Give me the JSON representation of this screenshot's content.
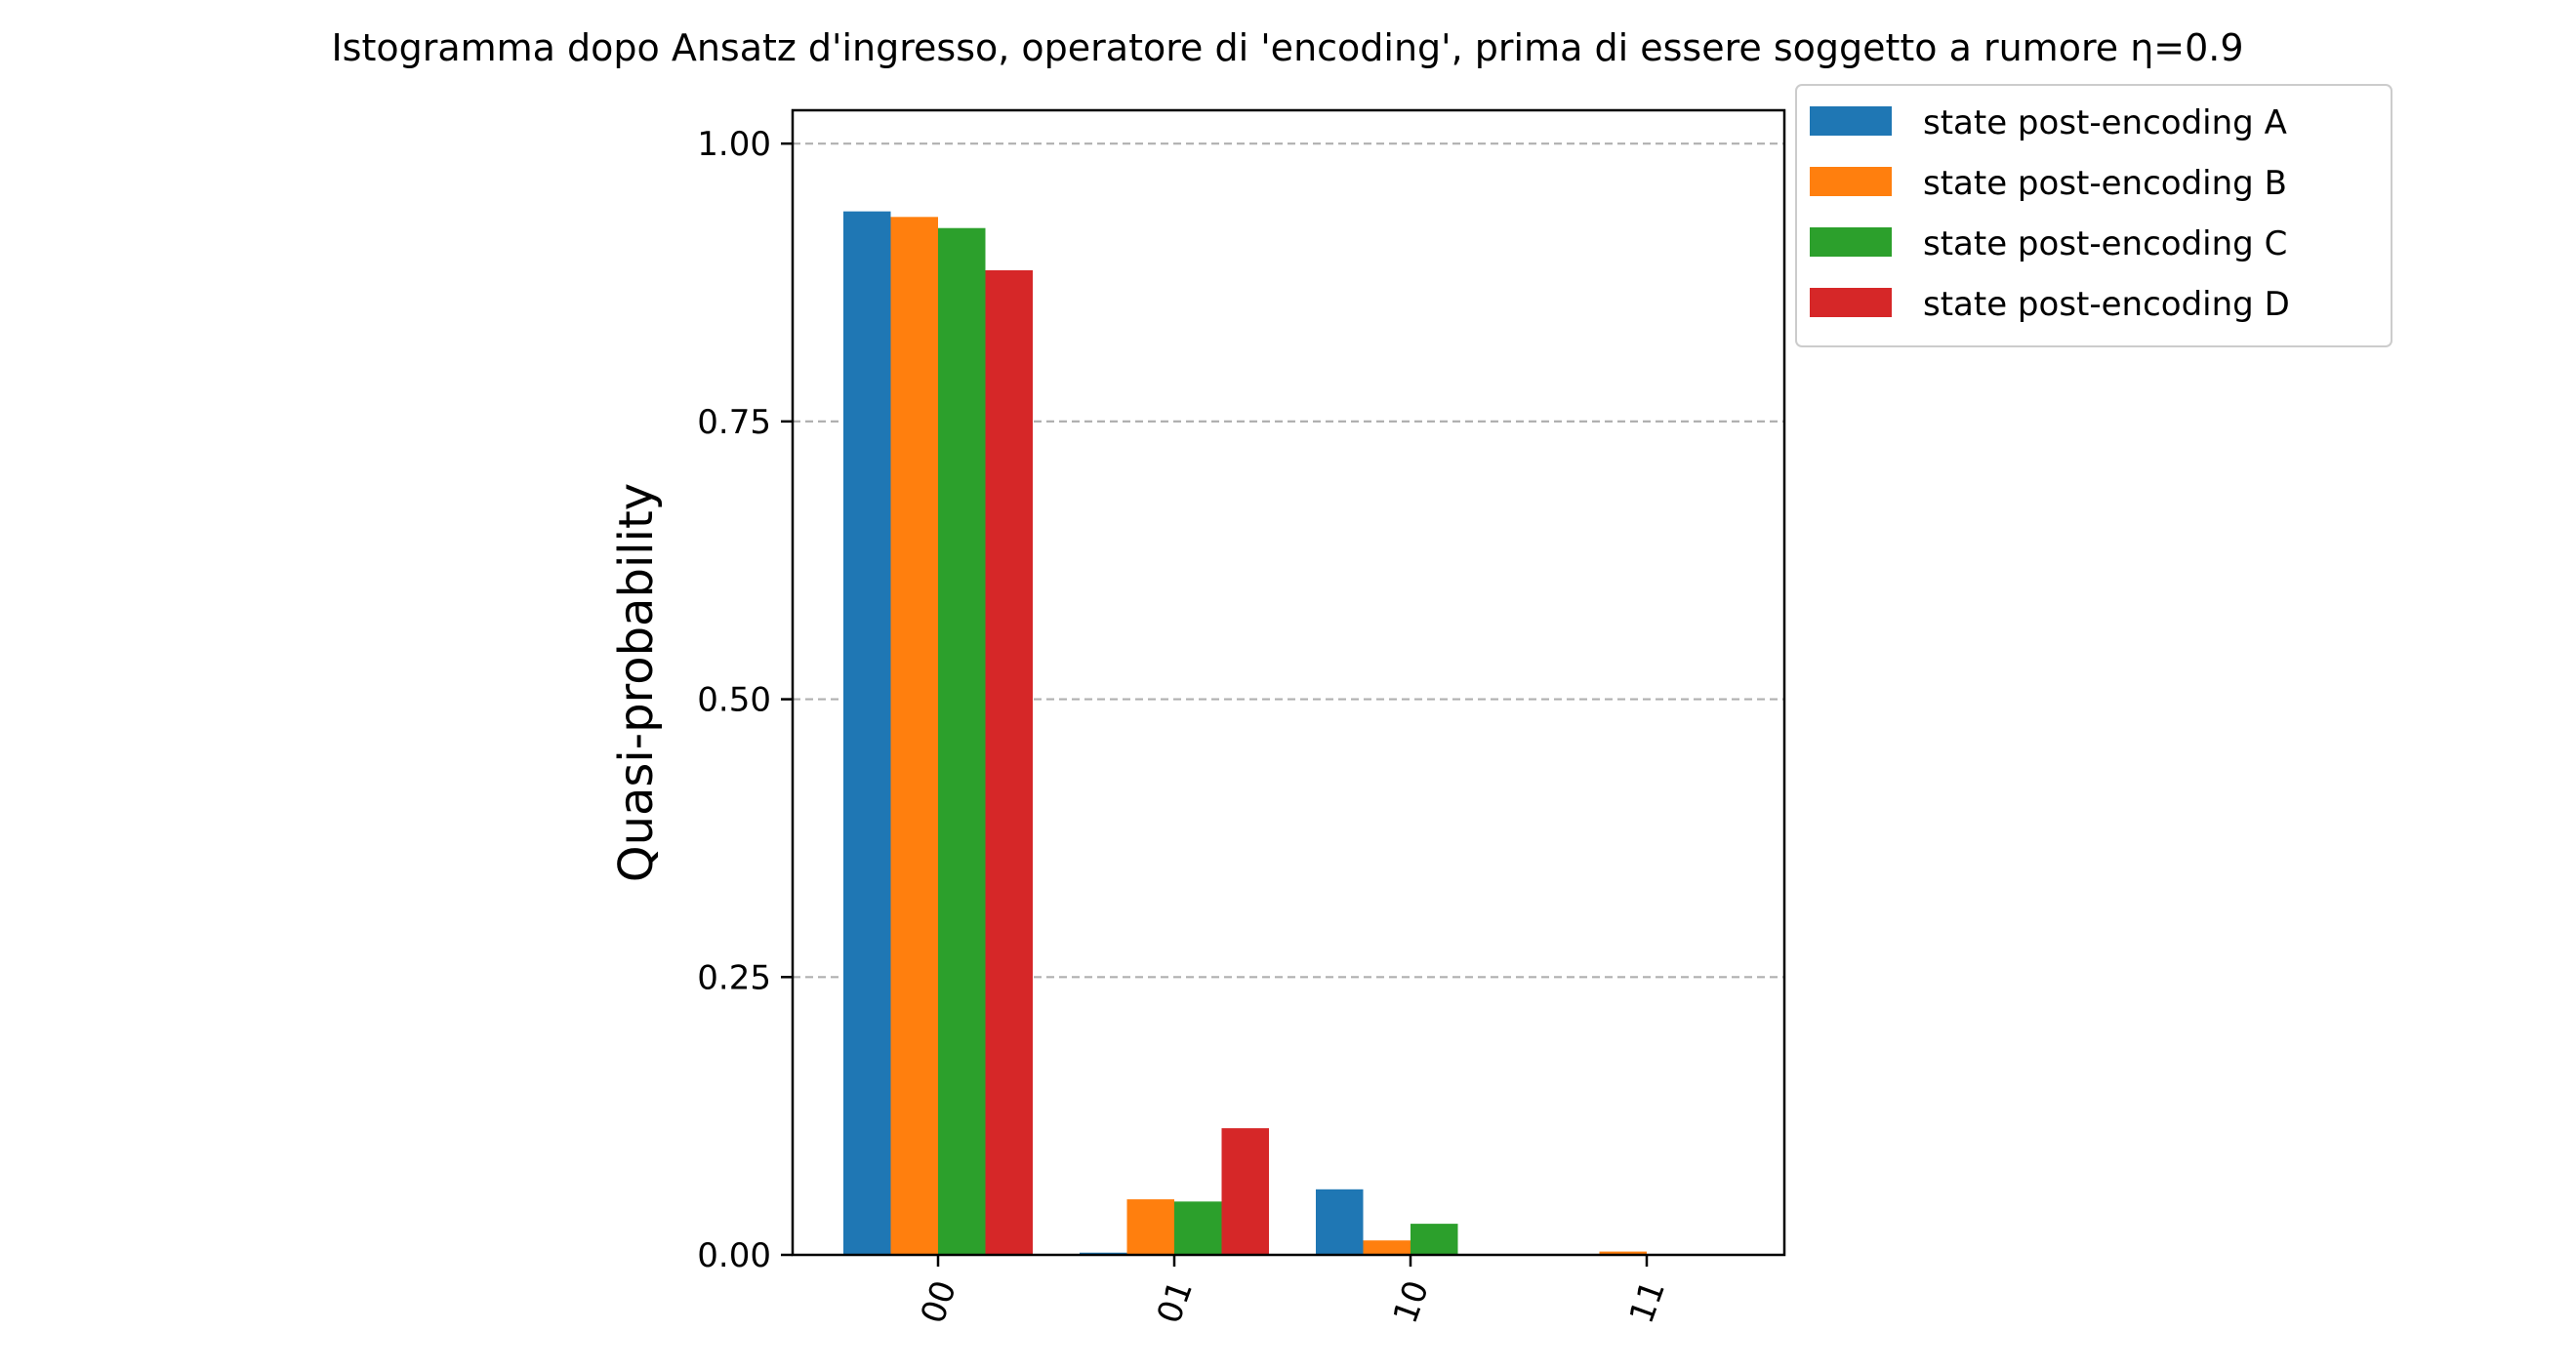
{
  "chart_data": {
    "type": "bar",
    "title": "Istogramma dopo Ansatz d'ingresso, operatore di 'encoding', prima di essere soggetto a rumore η=0.9",
    "xlabel": "",
    "ylabel": "Quasi-probability",
    "ylim": [
      0,
      1.03
    ],
    "yticks": [
      0.0,
      0.25,
      0.5,
      0.75,
      1.0
    ],
    "ytick_labels": [
      "0.00",
      "0.25",
      "0.50",
      "0.75",
      "1.00"
    ],
    "grid": "y-dashed",
    "legend_position": "outside-top-right",
    "categories": [
      "00",
      "01",
      "10",
      "11"
    ],
    "series": [
      {
        "name": "state post-encoding A",
        "color": "#1f77b4",
        "values": [
          0.939,
          0.002,
          0.059,
          0.0
        ]
      },
      {
        "name": "state post-encoding B",
        "color": "#ff7f0e",
        "values": [
          0.934,
          0.05,
          0.013,
          0.003
        ]
      },
      {
        "name": "state post-encoding C",
        "color": "#2ca02c",
        "values": [
          0.924,
          0.048,
          0.028,
          0.0
        ]
      },
      {
        "name": "state post-encoding D",
        "color": "#d62728",
        "values": [
          0.886,
          0.114,
          0.0,
          0.0
        ]
      }
    ]
  }
}
